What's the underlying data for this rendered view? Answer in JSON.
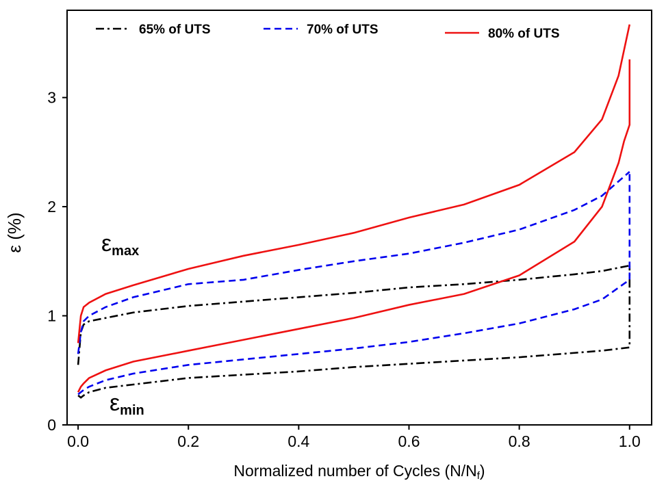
{
  "chart_data": {
    "type": "line",
    "xlabel": {
      "text": "Normalized number of Cycles (N/N",
      "sub": "f",
      "end": ")"
    },
    "ylabel": "ε (%)",
    "annotations": [
      {
        "symbol": "ε",
        "subscript": "max"
      },
      {
        "symbol": "ε",
        "subscript": "min"
      }
    ],
    "xlim": [
      -0.02,
      1.04
    ],
    "ylim": [
      0,
      3.8
    ],
    "xticks": [
      {
        "value": 0,
        "label": "0.0"
      },
      0.2,
      0.4,
      0.6,
      0.8,
      {
        "value": 1,
        "label": "1.0"
      }
    ],
    "yticks": [
      0,
      1,
      2,
      3
    ],
    "legend": "top",
    "series": [
      {
        "name": "65% of UTS",
        "color": "#000000",
        "dash": "dashdot",
        "curves": [
          {
            "x": [
              0,
              0.005,
              0.01,
              0.02,
              0.05,
              0.1,
              0.2,
              0.3,
              0.4,
              0.5,
              0.6,
              0.7,
              0.8,
              0.9,
              0.95,
              1.0
            ],
            "values": [
              0.55,
              0.85,
              0.92,
              0.95,
              0.98,
              1.03,
              1.09,
              1.13,
              1.17,
              1.21,
              1.26,
              1.29,
              1.33,
              1.38,
              1.41,
              1.46
            ]
          },
          {
            "x": [
              0,
              0.005,
              0.01,
              0.02,
              0.05,
              0.1,
              0.2,
              0.3,
              0.4,
              0.5,
              0.6,
              0.7,
              0.8,
              0.9,
              0.95,
              1.0,
              1.0
            ],
            "values": [
              0.27,
              0.25,
              0.27,
              0.3,
              0.34,
              0.37,
              0.43,
              0.46,
              0.49,
              0.53,
              0.56,
              0.59,
              0.62,
              0.66,
              0.68,
              0.71,
              1.46
            ]
          }
        ]
      },
      {
        "name": "70% of UTS",
        "color": "#0000ee",
        "dash": "dashed",
        "curves": [
          {
            "x": [
              0,
              0.005,
              0.01,
              0.02,
              0.05,
              0.1,
              0.2,
              0.3,
              0.4,
              0.5,
              0.6,
              0.7,
              0.8,
              0.9,
              0.95,
              1.0
            ],
            "values": [
              0.65,
              0.85,
              0.95,
              1.0,
              1.08,
              1.17,
              1.29,
              1.33,
              1.42,
              1.5,
              1.57,
              1.67,
              1.79,
              1.97,
              2.1,
              2.32
            ]
          },
          {
            "x": [
              0,
              0.005,
              0.01,
              0.02,
              0.05,
              0.1,
              0.2,
              0.3,
              0.4,
              0.5,
              0.6,
              0.7,
              0.8,
              0.9,
              0.95,
              1.0,
              1.0
            ],
            "values": [
              0.28,
              0.3,
              0.32,
              0.35,
              0.41,
              0.47,
              0.55,
              0.6,
              0.65,
              0.7,
              0.76,
              0.84,
              0.93,
              1.06,
              1.15,
              1.33,
              2.3
            ]
          }
        ]
      },
      {
        "name": "80% of UTS",
        "color": "#ee1111",
        "dash": "solid",
        "curves": [
          {
            "x": [
              0,
              0.005,
              0.01,
              0.02,
              0.05,
              0.1,
              0.2,
              0.3,
              0.4,
              0.5,
              0.6,
              0.7,
              0.8,
              0.9,
              0.95,
              0.98,
              1.0
            ],
            "values": [
              0.75,
              1.0,
              1.08,
              1.12,
              1.2,
              1.28,
              1.43,
              1.55,
              1.65,
              1.76,
              1.9,
              2.02,
              2.2,
              2.5,
              2.8,
              3.2,
              3.67
            ]
          },
          {
            "x": [
              0,
              0.005,
              0.01,
              0.02,
              0.05,
              0.1,
              0.2,
              0.3,
              0.4,
              0.5,
              0.6,
              0.7,
              0.8,
              0.9,
              0.95,
              0.98,
              0.99,
              1.0,
              1.0
            ],
            "values": [
              0.3,
              0.35,
              0.38,
              0.43,
              0.5,
              0.58,
              0.68,
              0.78,
              0.88,
              0.98,
              1.1,
              1.2,
              1.37,
              1.68,
              2.0,
              2.4,
              2.6,
              2.75,
              3.35
            ]
          }
        ]
      }
    ]
  }
}
